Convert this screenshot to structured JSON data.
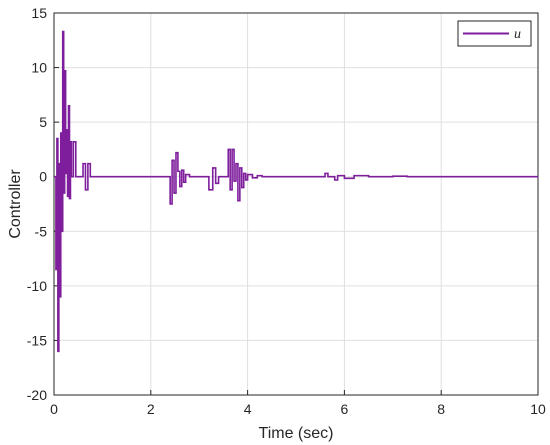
{
  "chart_data": {
    "type": "line",
    "title": "",
    "xlabel": "Time (sec)",
    "ylabel": "Controller",
    "xlim": [
      0,
      10
    ],
    "ylim": [
      -20,
      15
    ],
    "xticks": [
      0,
      2,
      4,
      6,
      8,
      10
    ],
    "yticks": [
      -20,
      -15,
      -10,
      -5,
      0,
      5,
      10,
      15
    ],
    "grid": true,
    "legend_position": "top-right",
    "series": [
      {
        "name": "u",
        "color": "#7e1e9c",
        "style": "stairs",
        "x": [
          0.0,
          0.04,
          0.06,
          0.08,
          0.1,
          0.12,
          0.14,
          0.16,
          0.18,
          0.2,
          0.22,
          0.24,
          0.26,
          0.28,
          0.3,
          0.32,
          0.34,
          0.36,
          0.4,
          0.45,
          0.5,
          0.55,
          0.6,
          0.65,
          0.7,
          0.75,
          0.8,
          2.4,
          2.44,
          2.48,
          2.52,
          2.56,
          2.6,
          2.64,
          2.68,
          2.72,
          2.8,
          3.2,
          3.28,
          3.34,
          3.4,
          3.5,
          3.6,
          3.64,
          3.68,
          3.72,
          3.76,
          3.8,
          3.84,
          3.88,
          3.92,
          3.96,
          4.0,
          4.1,
          4.2,
          4.3,
          4.4,
          4.6,
          5.6,
          5.66,
          5.72,
          5.8,
          5.86,
          6.0,
          6.2,
          6.5,
          7.0,
          7.3,
          10.0
        ],
        "values": [
          0.0,
          -8.5,
          3.5,
          -16.0,
          1.2,
          -11.0,
          4.0,
          -5.0,
          13.3,
          -1.5,
          9.7,
          0.3,
          4.3,
          -1.8,
          6.5,
          -2.0,
          3.2,
          0.0,
          3.2,
          0.0,
          0.0,
          0.0,
          1.2,
          -1.2,
          1.2,
          0.0,
          0.0,
          -2.5,
          1.5,
          -1.5,
          2.2,
          0.5,
          -0.9,
          0.6,
          -0.5,
          0.2,
          0.0,
          -1.2,
          0.8,
          -0.6,
          0.0,
          0.0,
          2.5,
          -1.2,
          2.5,
          -0.4,
          1.2,
          -2.2,
          0.8,
          -1.0,
          0.3,
          -0.3,
          0.2,
          -0.1,
          0.1,
          0.0,
          0.0,
          0.0,
          0.3,
          0.0,
          0.0,
          -0.3,
          0.1,
          -0.15,
          0.1,
          0.0,
          0.05,
          0.0,
          0.0
        ]
      }
    ]
  },
  "legend": {
    "label": "u",
    "line_color": "#7e1e9c"
  }
}
